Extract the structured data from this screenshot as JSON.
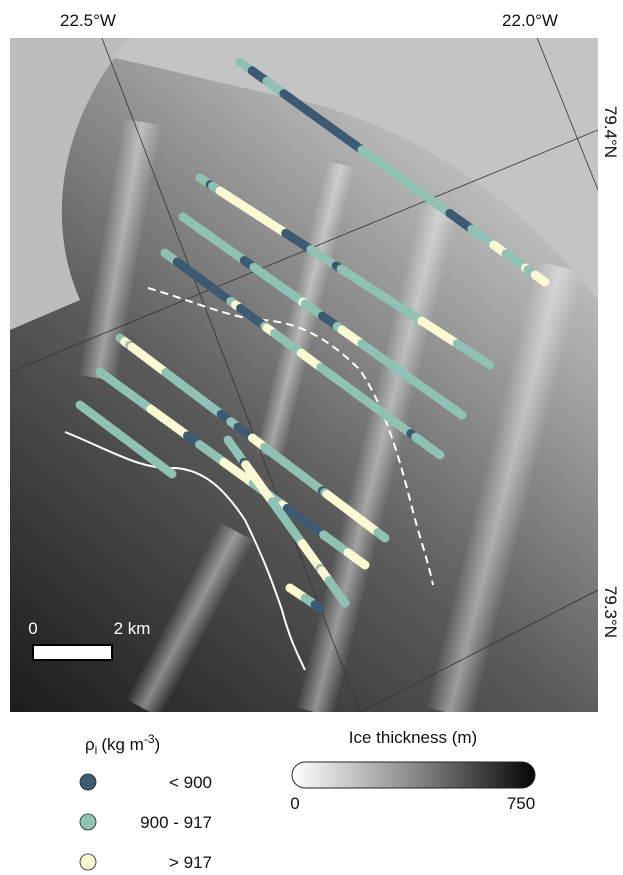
{
  "map": {
    "longitude_labels": [
      "22.5°W",
      "22.0°W"
    ],
    "latitude_labels": [
      "79.4°N",
      "79.3°N"
    ],
    "scale_bar": {
      "start": "0",
      "end": "2 km"
    }
  },
  "density_legend": {
    "title": {
      "symbol": "ρ",
      "subscript": "i",
      "unit": "(kg m",
      "exponent": "-3",
      "close": ")"
    },
    "items": [
      "< 900",
      "900 - 917",
      "> 917"
    ]
  },
  "thickness_legend": {
    "title": "Ice thickness (m)",
    "min": "0",
    "max": "750"
  }
}
